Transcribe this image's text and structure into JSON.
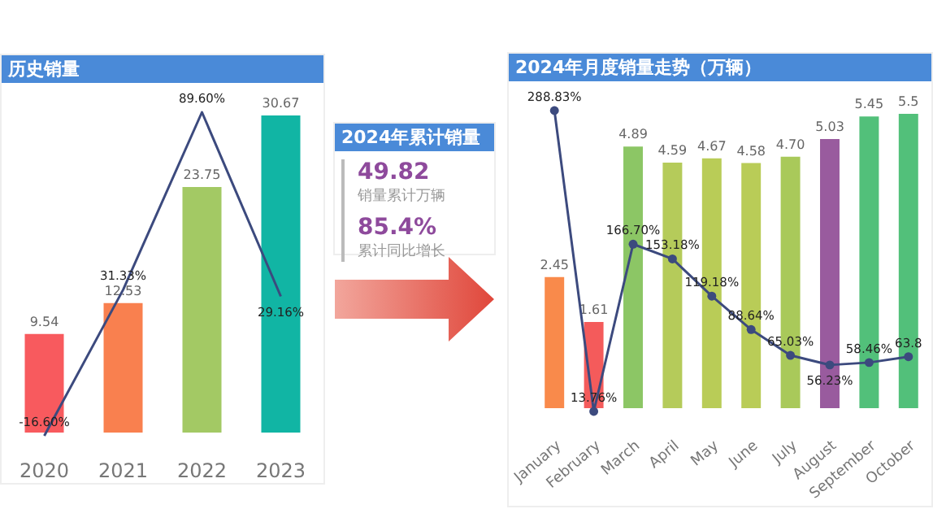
{
  "chart_data": [
    {
      "type": "bar",
      "title": "历史销量",
      "categories": [
        "2020",
        "2021",
        "2022",
        "2023"
      ],
      "tick_labels": "x",
      "series": [
        {
          "type": "bar",
          "colors": [
            "#f85a5e",
            "#f9804f",
            "#a3c964",
            "#11b5a4"
          ],
          "values": [
            9.54,
            12.53,
            23.75,
            30.67
          ],
          "value_labels": [
            "9.54",
            "12.53",
            "23.75",
            "30.67"
          ]
        },
        {
          "type": "line",
          "axis": "y2",
          "color": "#3c4a7e",
          "values": [
            -16.6,
            31.33,
            89.6,
            29.16
          ],
          "value_labels": [
            "-16.60%",
            "31.33%",
            "89.60%",
            "29.16%"
          ]
        }
      ]
    },
    {
      "type": "other",
      "title": "2024年累计销量",
      "annotations": [
        "49.82",
        "销量累计万辆",
        "85.4%",
        "累计同比增长"
      ]
    },
    {
      "type": "bar",
      "title": "2024年月度销量走势（万辆）",
      "categories": [
        "January",
        "February",
        "March",
        "April",
        "May",
        "June",
        "July",
        "August",
        "September",
        "October"
      ],
      "tick_labels": "x",
      "marker": "circle",
      "series": [
        {
          "type": "bar",
          "colors": [
            "#f98a4b",
            "#f45b5b",
            "#8cc665",
            "#b5cb5a",
            "#b9cc57",
            "#b9cc57",
            "#a9c95a",
            "#995b9e",
            "#52c07a",
            "#52c07a"
          ],
          "values": [
            2.45,
            1.61,
            4.89,
            4.59,
            4.67,
            4.58,
            4.7,
            5.03,
            5.45,
            5.5
          ],
          "value_labels": [
            "2.45",
            "1.61",
            "4.89",
            "4.59",
            "4.67",
            "4.58",
            "4.70",
            "5.03",
            "5.45",
            "5.5"
          ]
        },
        {
          "type": "line",
          "axis": "y2",
          "color": "#3c4a7e",
          "values": [
            288.83,
            13.76,
            166.7,
            153.18,
            119.18,
            88.64,
            65.03,
            56.23,
            58.46,
            63.8
          ],
          "value_labels": [
            "288.83%",
            "13.76%",
            "166.70%",
            "153.18%",
            "119.18%",
            "88.64%",
            "65.03%",
            "56.23%",
            "58.46%",
            "63.8"
          ]
        }
      ]
    }
  ]
}
